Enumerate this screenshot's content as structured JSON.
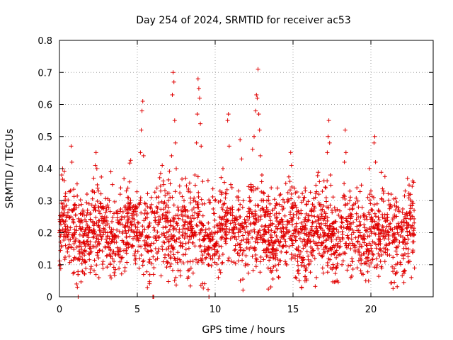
{
  "chart_data": {
    "type": "scatter",
    "title": "Day 254 of 2024, SRMTID for receiver ac53",
    "xlabel": "GPS time / hours",
    "ylabel": "SRMTID / TECUs",
    "xlim": [
      0,
      24
    ],
    "ylim": [
      0,
      0.8
    ],
    "x_ticks": [
      0,
      5,
      10,
      15,
      20
    ],
    "x_tick_labels": [
      "0",
      "5",
      "10",
      "15",
      "20"
    ],
    "y_ticks": [
      0,
      0.1,
      0.2,
      0.3,
      0.4,
      0.5,
      0.6,
      0.7,
      0.8
    ],
    "y_tick_labels": [
      "0",
      "0.1",
      "0.2",
      "0.3",
      "0.4",
      "0.5",
      "0.6",
      "0.7",
      "0.8"
    ],
    "grid": true,
    "marker": "+",
    "color": "#e00000",
    "x_range_data": [
      0,
      22.8
    ],
    "typical_y_range": [
      0.05,
      0.35
    ],
    "series": [
      {
        "name": "SRMTID",
        "points": [
          [
            0.0,
            0.2
          ],
          [
            0.05,
            0.1
          ],
          [
            0.1,
            0.25
          ],
          [
            0.15,
            0.38
          ],
          [
            0.2,
            0.4
          ],
          [
            0.3,
            0.3
          ],
          [
            0.4,
            0.22
          ],
          [
            0.5,
            0.15
          ],
          [
            0.6,
            0.2
          ],
          [
            0.7,
            0.33
          ],
          [
            0.75,
            0.47
          ],
          [
            0.8,
            0.42
          ],
          [
            0.9,
            0.27
          ],
          [
            1.0,
            0.2
          ],
          [
            1.05,
            0.12
          ],
          [
            1.1,
            0.04
          ],
          [
            1.15,
            0.03
          ],
          [
            1.2,
            0.0
          ],
          [
            1.3,
            0.17
          ],
          [
            1.4,
            0.24
          ],
          [
            1.5,
            0.19
          ],
          [
            1.6,
            0.13
          ],
          [
            1.7,
            0.21
          ],
          [
            1.8,
            0.27
          ],
          [
            1.9,
            0.29
          ],
          [
            2.0,
            0.24
          ],
          [
            2.1,
            0.33
          ],
          [
            2.2,
            0.37
          ],
          [
            2.3,
            0.41
          ],
          [
            2.35,
            0.45
          ],
          [
            2.4,
            0.4
          ],
          [
            2.5,
            0.33
          ],
          [
            2.6,
            0.26
          ],
          [
            2.7,
            0.18
          ],
          [
            2.8,
            0.11
          ],
          [
            2.9,
            0.21
          ],
          [
            3.0,
            0.28
          ],
          [
            3.1,
            0.2
          ],
          [
            3.2,
            0.3
          ],
          [
            3.3,
            0.39
          ],
          [
            3.4,
            0.35
          ],
          [
            3.5,
            0.26
          ],
          [
            3.6,
            0.19
          ],
          [
            3.7,
            0.14
          ],
          [
            3.8,
            0.23
          ],
          [
            3.9,
            0.32
          ],
          [
            4.0,
            0.25
          ],
          [
            4.1,
            0.17
          ],
          [
            4.2,
            0.08
          ],
          [
            4.3,
            0.15
          ],
          [
            4.4,
            0.22
          ],
          [
            4.5,
            0.29
          ],
          [
            4.6,
            0.21
          ],
          [
            4.7,
            0.16
          ],
          [
            4.8,
            0.24
          ],
          [
            4.9,
            0.12
          ],
          [
            5.0,
            0.2
          ],
          [
            5.1,
            0.29
          ],
          [
            5.2,
            0.45
          ],
          [
            5.25,
            0.52
          ],
          [
            5.3,
            0.58
          ],
          [
            5.35,
            0.61
          ],
          [
            5.4,
            0.44
          ],
          [
            5.5,
            0.27
          ],
          [
            5.6,
            0.19
          ],
          [
            5.7,
            0.14
          ],
          [
            5.8,
            0.23
          ],
          [
            5.9,
            0.31
          ],
          [
            6.0,
            0.0
          ],
          [
            6.05,
            0.0
          ],
          [
            6.1,
            0.26
          ],
          [
            6.2,
            0.19
          ],
          [
            6.3,
            0.12
          ],
          [
            6.4,
            0.25
          ],
          [
            6.5,
            0.33
          ],
          [
            6.6,
            0.41
          ],
          [
            6.7,
            0.35
          ],
          [
            6.8,
            0.28
          ],
          [
            6.9,
            0.2
          ],
          [
            7.0,
            0.13
          ],
          [
            7.1,
            0.31
          ],
          [
            7.2,
            0.44
          ],
          [
            7.25,
            0.63
          ],
          [
            7.3,
            0.7
          ],
          [
            7.35,
            0.67
          ],
          [
            7.4,
            0.55
          ],
          [
            7.45,
            0.48
          ],
          [
            7.5,
            0.4
          ],
          [
            7.6,
            0.28
          ],
          [
            7.7,
            0.21
          ],
          [
            7.8,
            0.16
          ],
          [
            7.9,
            0.24
          ],
          [
            8.0,
            0.3
          ],
          [
            8.1,
            0.37
          ],
          [
            8.2,
            0.25
          ],
          [
            8.3,
            0.17
          ],
          [
            8.4,
            0.11
          ],
          [
            8.5,
            0.22
          ],
          [
            8.6,
            0.3
          ],
          [
            8.7,
            0.38
          ],
          [
            8.8,
            0.48
          ],
          [
            8.85,
            0.57
          ],
          [
            8.9,
            0.68
          ],
          [
            8.95,
            0.65
          ],
          [
            9.0,
            0.62
          ],
          [
            9.05,
            0.54
          ],
          [
            9.1,
            0.47
          ],
          [
            9.2,
            0.36
          ],
          [
            9.3,
            0.29
          ],
          [
            9.4,
            0.21
          ],
          [
            9.5,
            0.15
          ],
          [
            9.55,
            0.1
          ],
          [
            9.6,
            0.0
          ],
          [
            9.7,
            0.12
          ],
          [
            9.8,
            0.18
          ],
          [
            9.9,
            0.26
          ],
          [
            10.0,
            0.2
          ],
          [
            10.1,
            0.14
          ],
          [
            10.2,
            0.06
          ],
          [
            10.3,
            0.23
          ],
          [
            10.4,
            0.32
          ],
          [
            10.5,
            0.4
          ],
          [
            10.6,
            0.29
          ],
          [
            10.7,
            0.22
          ],
          [
            10.8,
            0.55
          ],
          [
            10.85,
            0.57
          ],
          [
            10.9,
            0.47
          ],
          [
            11.0,
            0.35
          ],
          [
            11.1,
            0.28
          ],
          [
            11.2,
            0.21
          ],
          [
            11.3,
            0.16
          ],
          [
            11.4,
            0.24
          ],
          [
            11.5,
            0.33
          ],
          [
            11.6,
            0.49
          ],
          [
            11.7,
            0.43
          ],
          [
            11.8,
            0.3
          ],
          [
            11.9,
            0.23
          ],
          [
            12.0,
            0.17
          ],
          [
            12.1,
            0.1
          ],
          [
            12.2,
            0.26
          ],
          [
            12.3,
            0.35
          ],
          [
            12.4,
            0.46
          ],
          [
            12.5,
            0.5
          ],
          [
            12.6,
            0.58
          ],
          [
            12.65,
            0.63
          ],
          [
            12.7,
            0.62
          ],
          [
            12.75,
            0.71
          ],
          [
            12.8,
            0.57
          ],
          [
            12.85,
            0.52
          ],
          [
            12.9,
            0.44
          ],
          [
            13.0,
            0.38
          ],
          [
            13.1,
            0.3
          ],
          [
            13.2,
            0.22
          ],
          [
            13.3,
            0.15
          ],
          [
            13.4,
            0.09
          ],
          [
            13.5,
            0.25
          ],
          [
            13.6,
            0.34
          ],
          [
            13.7,
            0.27
          ],
          [
            13.8,
            0.2
          ],
          [
            13.9,
            0.13
          ],
          [
            14.0,
            0.18
          ],
          [
            14.1,
            0.26
          ],
          [
            14.2,
            0.32
          ],
          [
            14.3,
            0.24
          ],
          [
            14.4,
            0.16
          ],
          [
            14.5,
            0.11
          ],
          [
            14.6,
            0.21
          ],
          [
            14.7,
            0.3
          ],
          [
            14.8,
            0.36
          ],
          [
            14.85,
            0.45
          ],
          [
            14.9,
            0.41
          ],
          [
            15.0,
            0.28
          ],
          [
            15.1,
            0.21
          ],
          [
            15.2,
            0.15
          ],
          [
            15.3,
            0.08
          ],
          [
            15.4,
            0.05
          ],
          [
            15.5,
            0.14
          ],
          [
            15.6,
            0.22
          ],
          [
            15.7,
            0.31
          ],
          [
            15.8,
            0.24
          ],
          [
            15.9,
            0.17
          ],
          [
            16.0,
            0.1
          ],
          [
            16.1,
            0.2
          ],
          [
            16.2,
            0.27
          ],
          [
            16.3,
            0.19
          ],
          [
            16.4,
            0.12
          ],
          [
            16.5,
            0.06
          ],
          [
            16.6,
            0.15
          ],
          [
            16.7,
            0.22
          ],
          [
            16.8,
            0.16
          ],
          [
            16.9,
            0.09
          ],
          [
            17.0,
            0.2
          ],
          [
            17.1,
            0.34
          ],
          [
            17.2,
            0.45
          ],
          [
            17.25,
            0.5
          ],
          [
            17.3,
            0.55
          ],
          [
            17.35,
            0.48
          ],
          [
            17.4,
            0.38
          ],
          [
            17.5,
            0.27
          ],
          [
            17.6,
            0.19
          ],
          [
            17.7,
            0.14
          ],
          [
            17.8,
            0.21
          ],
          [
            17.9,
            0.13
          ],
          [
            18.0,
            0.18
          ],
          [
            18.1,
            0.25
          ],
          [
            18.2,
            0.31
          ],
          [
            18.3,
            0.42
          ],
          [
            18.35,
            0.52
          ],
          [
            18.4,
            0.45
          ],
          [
            18.5,
            0.29
          ],
          [
            18.6,
            0.21
          ],
          [
            18.7,
            0.15
          ],
          [
            18.8,
            0.11
          ],
          [
            18.9,
            0.2
          ],
          [
            19.0,
            0.14
          ],
          [
            19.1,
            0.22
          ],
          [
            19.2,
            0.28
          ],
          [
            19.3,
            0.2
          ],
          [
            19.4,
            0.13
          ],
          [
            19.5,
            0.07
          ],
          [
            19.6,
            0.18
          ],
          [
            19.7,
            0.25
          ],
          [
            19.8,
            0.31
          ],
          [
            19.9,
            0.4
          ],
          [
            20.0,
            0.33
          ],
          [
            20.1,
            0.27
          ],
          [
            20.2,
            0.48
          ],
          [
            20.25,
            0.5
          ],
          [
            20.3,
            0.42
          ],
          [
            20.4,
            0.29
          ],
          [
            20.5,
            0.21
          ],
          [
            20.6,
            0.15
          ],
          [
            20.7,
            0.09
          ],
          [
            20.8,
            0.19
          ],
          [
            20.9,
            0.11
          ],
          [
            21.0,
            0.16
          ],
          [
            21.1,
            0.2
          ],
          [
            21.2,
            0.13
          ],
          [
            21.3,
            0.21
          ],
          [
            21.4,
            0.24
          ],
          [
            21.5,
            0.17
          ],
          [
            21.6,
            0.1
          ],
          [
            21.7,
            0.2
          ],
          [
            21.8,
            0.27
          ],
          [
            21.9,
            0.19
          ],
          [
            22.0,
            0.13
          ],
          [
            22.1,
            0.24
          ],
          [
            22.2,
            0.33
          ],
          [
            22.3,
            0.26
          ],
          [
            22.4,
            0.18
          ],
          [
            22.5,
            0.11
          ],
          [
            22.6,
            0.06
          ],
          [
            22.7,
            0.14
          ],
          [
            22.8,
            0.09
          ]
        ]
      }
    ]
  }
}
